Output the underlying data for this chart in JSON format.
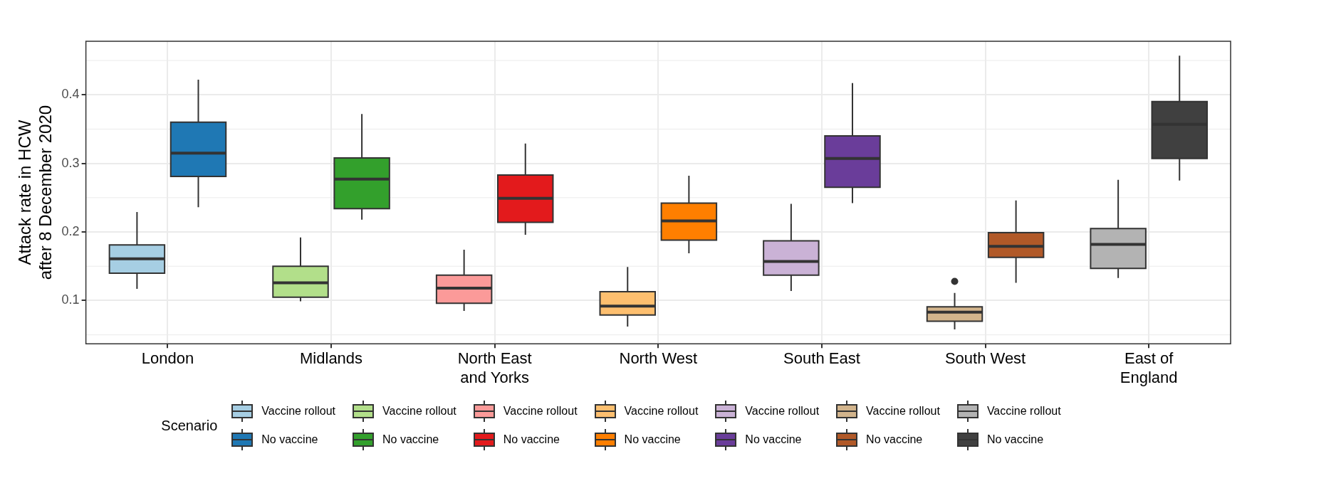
{
  "chart_data": {
    "type": "box",
    "ylabel": "Attack rate in HCW\nafter 8 December 2020",
    "legend_title": "Scenario",
    "legend": "bottom",
    "grid": true,
    "categories": [
      "London",
      "Midlands",
      "North East and Yorks",
      "North West",
      "South East",
      "South West",
      "East of England"
    ],
    "ylim": [
      0.037,
      0.478
    ],
    "yticks": [
      0.1,
      0.2,
      0.3,
      0.4
    ],
    "series": [
      {
        "name": "Vaccine rollout",
        "color": "#a6cee3",
        "boxes": [
          {
            "low": 0.117,
            "q1": 0.14,
            "median": 0.161,
            "q3": 0.181,
            "high": 0.229
          },
          null,
          null,
          null,
          null,
          null,
          null
        ]
      },
      {
        "name": "No vaccine",
        "color": "#1f78b4",
        "boxes": [
          {
            "low": 0.236,
            "q1": 0.281,
            "median": 0.315,
            "q3": 0.36,
            "high": 0.422
          },
          null,
          null,
          null,
          null,
          null,
          null
        ]
      },
      {
        "name": "Vaccine rollout",
        "color": "#b2df8a",
        "boxes": [
          null,
          {
            "low": 0.099,
            "q1": 0.105,
            "median": 0.126,
            "q3": 0.15,
            "high": 0.192
          },
          null,
          null,
          null,
          null,
          null
        ]
      },
      {
        "name": "No vaccine",
        "color": "#33a02c",
        "boxes": [
          null,
          {
            "low": 0.218,
            "q1": 0.234,
            "median": 0.277,
            "q3": 0.308,
            "high": 0.372
          },
          null,
          null,
          null,
          null,
          null
        ]
      },
      {
        "name": "Vaccine rollout",
        "color": "#fb9a99",
        "boxes": [
          null,
          null,
          {
            "low": 0.085,
            "q1": 0.096,
            "median": 0.118,
            "q3": 0.137,
            "high": 0.174
          },
          null,
          null,
          null,
          null
        ]
      },
      {
        "name": "No vaccine",
        "color": "#e31a1c",
        "boxes": [
          null,
          null,
          {
            "low": 0.196,
            "q1": 0.214,
            "median": 0.249,
            "q3": 0.283,
            "high": 0.329
          },
          null,
          null,
          null,
          null
        ]
      },
      {
        "name": "Vaccine rollout",
        "color": "#fdbf6f",
        "boxes": [
          null,
          null,
          null,
          {
            "low": 0.062,
            "q1": 0.079,
            "median": 0.092,
            "q3": 0.113,
            "high": 0.149
          },
          null,
          null,
          null
        ]
      },
      {
        "name": "No vaccine",
        "color": "#ff7f00",
        "boxes": [
          null,
          null,
          null,
          {
            "low": 0.169,
            "q1": 0.188,
            "median": 0.216,
            "q3": 0.242,
            "high": 0.282
          },
          null,
          null,
          null
        ]
      },
      {
        "name": "Vaccine rollout",
        "color": "#cab2d6",
        "boxes": [
          null,
          null,
          null,
          null,
          {
            "low": 0.114,
            "q1": 0.137,
            "median": 0.157,
            "q3": 0.187,
            "high": 0.241
          },
          null,
          null
        ]
      },
      {
        "name": "No vaccine",
        "color": "#6a3d9a",
        "boxes": [
          null,
          null,
          null,
          null,
          {
            "low": 0.242,
            "q1": 0.265,
            "median": 0.307,
            "q3": 0.34,
            "high": 0.417
          },
          null,
          null
        ]
      },
      {
        "name": "Vaccine rollout",
        "color": "#d2b48c",
        "boxes": [
          null,
          null,
          null,
          null,
          null,
          {
            "low": 0.058,
            "q1": 0.07,
            "median": 0.083,
            "q3": 0.091,
            "high": 0.111,
            "outliers": [
              0.128
            ]
          },
          null
        ]
      },
      {
        "name": "No vaccine",
        "color": "#b15928",
        "boxes": [
          null,
          null,
          null,
          null,
          null,
          {
            "low": 0.126,
            "q1": 0.163,
            "median": 0.179,
            "q3": 0.199,
            "high": 0.246
          },
          null
        ]
      },
      {
        "name": "Vaccine rollout",
        "color": "#b3b3b3",
        "boxes": [
          null,
          null,
          null,
          null,
          null,
          null,
          {
            "low": 0.133,
            "q1": 0.147,
            "median": 0.182,
            "q3": 0.205,
            "high": 0.276
          }
        ]
      },
      {
        "name": "No vaccine",
        "color": "#404040",
        "boxes": [
          null,
          null,
          null,
          null,
          null,
          null,
          {
            "low": 0.275,
            "q1": 0.307,
            "median": 0.357,
            "q3": 0.39,
            "high": 0.457
          }
        ]
      }
    ]
  }
}
